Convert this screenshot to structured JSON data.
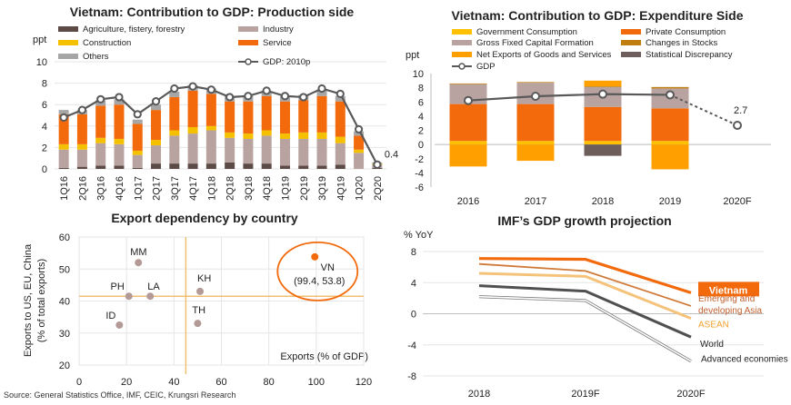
{
  "source": "Source: General Statistics Office, IMF, CEIC, Krungsri Research",
  "colors": {
    "agriculture": "#5b4a45",
    "industry": "#b8a3a0",
    "construction": "#f5c000",
    "service": "#f26a0c",
    "others": "#a6a6a6",
    "line": "#595959",
    "gov": "#ffc000",
    "private": "#f26a0c",
    "gfcf": "#b8a3a0",
    "stocks": "#c07d10",
    "netexp": "#ffa000",
    "stat": "#6d5e5c",
    "vietnam": "#f26a0c",
    "emerging": "#d07a3a",
    "asean": "#f5c27a",
    "world": "#505050",
    "advanced": "#a6a6a6"
  },
  "chart_data": [
    {
      "type": "bar",
      "stacked": true,
      "title": "Vietnam: Contribution to GDP: Production side",
      "ylabel": "ppt",
      "ylim": [
        0,
        10
      ],
      "yticks": [
        0,
        2,
        4,
        6,
        8,
        10
      ],
      "categories": [
        "1Q16",
        "2Q16",
        "3Q16",
        "4Q16",
        "1Q17",
        "2Q17",
        "3Q17",
        "4Q17",
        "1Q18",
        "2Q18",
        "3Q18",
        "4Q18",
        "1Q19",
        "2Q19",
        "3Q19",
        "4Q19",
        "1Q20",
        "2Q20"
      ],
      "series": [
        {
          "name": "Agriculture, fistery, forestry",
          "key": "agriculture",
          "values": [
            0.1,
            0.2,
            0.3,
            0.3,
            0.1,
            0.5,
            0.5,
            0.5,
            0.5,
            0.6,
            0.5,
            0.5,
            0.3,
            0.3,
            0.3,
            0.4,
            0.0,
            0.1
          ]
        },
        {
          "name": "Industry",
          "key": "industry",
          "values": [
            1.7,
            1.6,
            2.1,
            2.0,
            1.2,
            1.7,
            2.6,
            2.8,
            3.1,
            2.3,
            2.3,
            2.6,
            2.5,
            2.5,
            2.5,
            2.0,
            1.5,
            0.3
          ]
        },
        {
          "name": "Construction",
          "key": "construction",
          "values": [
            0.5,
            0.5,
            0.5,
            0.5,
            0.4,
            0.5,
            0.5,
            0.6,
            0.4,
            0.5,
            0.5,
            0.5,
            0.5,
            0.6,
            0.6,
            0.6,
            0.3,
            0.1
          ]
        },
        {
          "name": "Service",
          "key": "service",
          "values": [
            2.8,
            2.8,
            3.0,
            3.2,
            2.5,
            2.8,
            3.1,
            3.4,
            3.0,
            2.9,
            3.0,
            3.2,
            3.0,
            3.0,
            3.4,
            3.3,
            1.3,
            0.0
          ]
        },
        {
          "name": "Others",
          "key": "others",
          "values": [
            0.4,
            0.4,
            0.5,
            0.5,
            0.4,
            0.5,
            0.5,
            0.5,
            0.5,
            0.5,
            0.5,
            0.5,
            0.5,
            0.5,
            0.5,
            0.5,
            0.4,
            0.1
          ]
        }
      ],
      "line": {
        "name": "GDP: 2010p",
        "values": [
          4.8,
          5.5,
          6.5,
          6.7,
          5.1,
          6.3,
          7.5,
          7.7,
          7.4,
          6.7,
          6.8,
          7.3,
          6.8,
          6.7,
          7.5,
          7.0,
          3.7,
          0.4
        ]
      },
      "annotations": [
        "0.4"
      ]
    },
    {
      "type": "bar",
      "stacked": true,
      "title": "Vietnam: Contribution to GDP: Expenditure Side",
      "ylabel": "ppt",
      "ylim": [
        -6,
        10
      ],
      "yticks": [
        -6,
        -4,
        -2,
        0,
        2,
        4,
        6,
        8,
        10
      ],
      "categories": [
        "2016",
        "2017",
        "2018",
        "2019",
        "2020F"
      ],
      "series": [
        {
          "name": "Government Consumption",
          "key": "gov",
          "values": [
            0.5,
            0.5,
            0.5,
            0.5,
            null
          ]
        },
        {
          "name": "Private Consumption",
          "key": "private",
          "values": [
            5.2,
            5.2,
            4.8,
            4.6,
            null
          ]
        },
        {
          "name": "Gross Fixed Capital Formation",
          "key": "gfcf",
          "values": [
            2.8,
            3.0,
            2.8,
            2.8,
            null
          ]
        },
        {
          "name": "Changes in Stocks",
          "key": "stocks",
          "values": [
            0.1,
            0.1,
            0.1,
            0.2,
            null
          ]
        },
        {
          "name": "Net Exports of Goods and Services",
          "key": "netexp",
          "values": [
            -3.1,
            -2.3,
            0.8,
            -3.5,
            null
          ]
        },
        {
          "name": "Statistical Discrepancy",
          "key": "stat",
          "values": [
            0.0,
            0.0,
            -1.6,
            0.0,
            null
          ]
        }
      ],
      "line": {
        "name": "GDP",
        "values": [
          6.2,
          6.8,
          7.1,
          7.0,
          2.7
        ]
      },
      "annotations": [
        "2.7"
      ]
    },
    {
      "type": "scatter",
      "title": "Export dependency by country",
      "xlabel": "Exports (% of GDP)",
      "ylabel": "Exports to US, EU, China (% of total exports)",
      "xlim": [
        0,
        120
      ],
      "ylim": [
        20,
        60
      ],
      "xticks": [
        0,
        20,
        40,
        60,
        80,
        100,
        120
      ],
      "yticks": [
        20,
        30,
        40,
        50,
        60
      ],
      "ref_x": 45,
      "ref_y": 41.5,
      "points": [
        {
          "label": "MM",
          "x": 25,
          "y": 52
        },
        {
          "label": "PH",
          "x": 21,
          "y": 41.5
        },
        {
          "label": "LA",
          "x": 30,
          "y": 41.5
        },
        {
          "label": "KH",
          "x": 51,
          "y": 43
        },
        {
          "label": "ID",
          "x": 17,
          "y": 32.5
        },
        {
          "label": "TH",
          "x": 50,
          "y": 33
        },
        {
          "label": "VN",
          "x": 99.4,
          "y": 53.8,
          "highlight": true,
          "note": "(99.4, 53.8)"
        }
      ]
    },
    {
      "type": "line",
      "title": "IMF’s GDP growth projection",
      "ylabel": "% YoY",
      "ylim": [
        -8,
        8
      ],
      "yticks": [
        -8,
        -4,
        0,
        4,
        8
      ],
      "x": [
        "2018",
        "2019F",
        "2020F"
      ],
      "series": [
        {
          "name": "Vietnam",
          "key": "vietnam",
          "values": [
            7.1,
            7.0,
            2.7
          ]
        },
        {
          "name": "Emerging and developing Asia",
          "key": "emerging",
          "values": [
            6.4,
            5.5,
            1.0
          ]
        },
        {
          "name": "ASEAN",
          "key": "asean",
          "values": [
            5.2,
            4.8,
            -0.6
          ]
        },
        {
          "name": "World",
          "key": "world",
          "values": [
            3.6,
            2.9,
            -3.0
          ]
        },
        {
          "name": "Advanced economies",
          "key": "advanced",
          "values": [
            2.2,
            1.7,
            -6.1
          ]
        }
      ]
    }
  ]
}
